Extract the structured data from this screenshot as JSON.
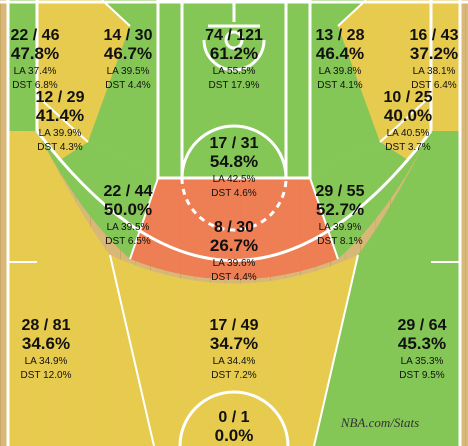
{
  "chart_data": {
    "type": "heatmap",
    "subtype": "shot-chart",
    "fields": [
      "made/attempted",
      "fg_pct",
      "league_avg",
      "distribution"
    ],
    "colors": {
      "above_avg": "#7ec854",
      "near_avg": "#e8cc4c",
      "below_avg": "#f07850"
    },
    "zones": [
      {
        "id": "left-corner-3",
        "made": 22,
        "att": 46,
        "pct": "47.8%",
        "la": "LA 37.4%",
        "dst": "DST 6.8%",
        "tier": "above"
      },
      {
        "id": "left-baseline-mid",
        "made": 12,
        "att": 29,
        "pct": "41.4%",
        "la": "LA 39.9%",
        "dst": "DST 4.3%",
        "tier": "near"
      },
      {
        "id": "left-short-mid",
        "made": 14,
        "att": 30,
        "pct": "46.7%",
        "la": "LA 39.5%",
        "dst": "DST 4.4%",
        "tier": "above"
      },
      {
        "id": "restricted-area",
        "made": 74,
        "att": 121,
        "pct": "61.2%",
        "la": "LA 55.5%",
        "dst": "DST 17.9%",
        "tier": "above"
      },
      {
        "id": "right-short-mid",
        "made": 13,
        "att": 28,
        "pct": "46.4%",
        "la": "LA 39.8%",
        "dst": "DST 4.1%",
        "tier": "above"
      },
      {
        "id": "right-corner-3",
        "made": 16,
        "att": 43,
        "pct": "37.2%",
        "la": "LA 38.1%",
        "dst": "DST 6.4%",
        "tier": "near"
      },
      {
        "id": "right-baseline-mid",
        "made": 10,
        "att": 25,
        "pct": "40.0%",
        "la": "LA 40.5%",
        "dst": "DST 3.7%",
        "tier": "near"
      },
      {
        "id": "paint-non-ra",
        "made": 17,
        "att": 31,
        "pct": "54.8%",
        "la": "LA 42.5%",
        "dst": "DST 4.6%",
        "tier": "above"
      },
      {
        "id": "left-wing-mid",
        "made": 22,
        "att": 44,
        "pct": "50.0%",
        "la": "LA 39.5%",
        "dst": "DST 6.5%",
        "tier": "above"
      },
      {
        "id": "top-key-mid",
        "made": 8,
        "att": 30,
        "pct": "26.7%",
        "la": "LA 39.6%",
        "dst": "DST 4.4%",
        "tier": "below"
      },
      {
        "id": "right-wing-mid",
        "made": 29,
        "att": 55,
        "pct": "52.7%",
        "la": "LA 39.9%",
        "dst": "DST 8.1%",
        "tier": "above"
      },
      {
        "id": "left-wing-3",
        "made": 28,
        "att": 81,
        "pct": "34.6%",
        "la": "LA 34.9%",
        "dst": "DST 12.0%",
        "tier": "near"
      },
      {
        "id": "top-key-3",
        "made": 17,
        "att": 49,
        "pct": "34.7%",
        "la": "LA 34.4%",
        "dst": "DST 7.2%",
        "tier": "near"
      },
      {
        "id": "right-wing-3",
        "made": 29,
        "att": 64,
        "pct": "45.3%",
        "la": "LA 35.3%",
        "dst": "DST 9.5%",
        "tier": "above"
      },
      {
        "id": "backcourt",
        "made": 0,
        "att": 1,
        "pct": "0.0%",
        "la": "",
        "dst": "",
        "tier": "below"
      }
    ]
  },
  "watermark": "NBA.com/Stats"
}
